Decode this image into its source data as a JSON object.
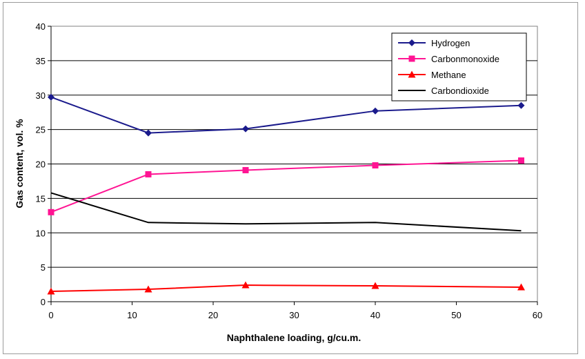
{
  "chart_data": {
    "type": "line",
    "title": "",
    "xlabel": "Naphthalene loading, g/cu.m.",
    "ylabel": "Gas content, vol. %",
    "xlim": [
      0,
      60
    ],
    "ylim": [
      0,
      40
    ],
    "x_ticks": [
      0,
      10,
      20,
      30,
      40,
      50,
      60
    ],
    "y_ticks": [
      0,
      5,
      10,
      15,
      20,
      25,
      30,
      35,
      40
    ],
    "grid": "horizontal",
    "legend_position": "top-right",
    "series": [
      {
        "name": "Hydrogen",
        "color": "#1a1a8c",
        "marker": "diamond",
        "x": [
          0,
          12,
          24,
          40,
          58
        ],
        "values": [
          29.7,
          24.5,
          25.1,
          27.7,
          28.5
        ]
      },
      {
        "name": "Carbonmonoxide",
        "color": "#ff1493",
        "marker": "square",
        "x": [
          0,
          12,
          24,
          40,
          58
        ],
        "values": [
          13.0,
          18.5,
          19.1,
          19.8,
          20.5
        ]
      },
      {
        "name": "Methane",
        "color": "#ff0000",
        "marker": "triangle",
        "x": [
          0,
          12,
          24,
          40,
          58
        ],
        "values": [
          1.5,
          1.8,
          2.4,
          2.3,
          2.1
        ]
      },
      {
        "name": "Carbondioxide",
        "color": "#000000",
        "marker": "none",
        "x": [
          0,
          12,
          24,
          40,
          58
        ],
        "values": [
          15.8,
          11.5,
          11.3,
          11.5,
          10.3
        ]
      }
    ]
  }
}
